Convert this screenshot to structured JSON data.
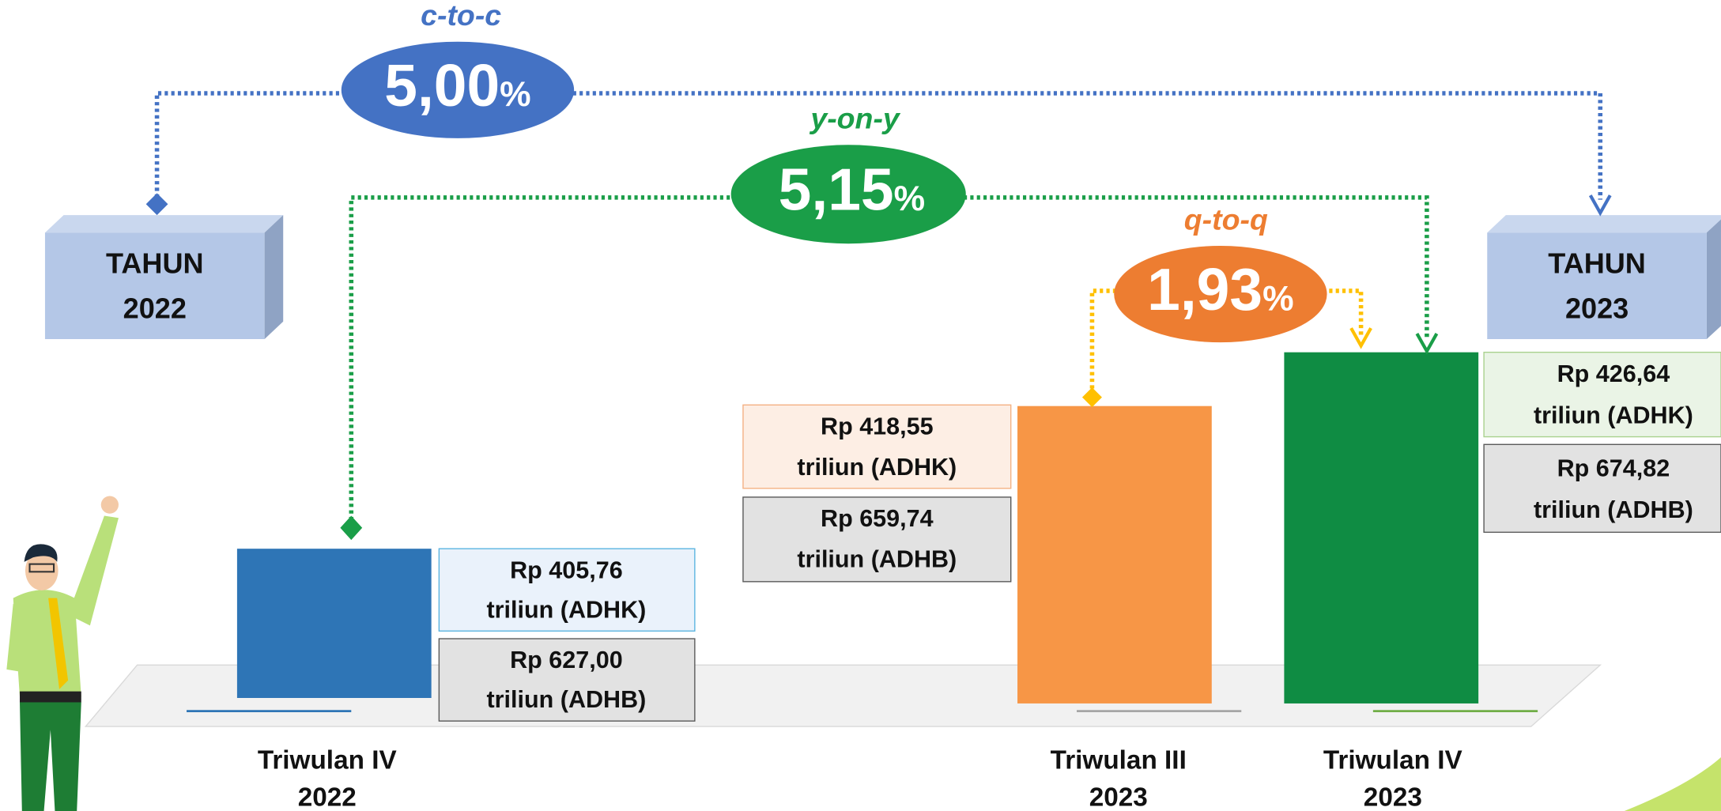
{
  "growth": [
    {
      "label": "c-to-c",
      "value": "5,00",
      "unit": "%"
    },
    {
      "label": "y-on-y",
      "value": "5,15",
      "unit": "%"
    },
    {
      "label": "q-to-q",
      "value": "1,93",
      "unit": "%"
    }
  ],
  "years": [
    [
      "TAHUN",
      "2022"
    ],
    [
      "TAHUN",
      "2023"
    ]
  ],
  "periods": [
    {
      "label": [
        "Triwulan IV",
        "2022"
      ],
      "adhk": [
        "Rp 405,76",
        "triliun (ADHK)"
      ],
      "adhb": [
        "Rp 627,00",
        "triliun (ADHB)"
      ]
    },
    {
      "label": [
        "Triwulan III",
        "2023"
      ],
      "adhk": [
        "Rp 418,55",
        "triliun (ADHK)"
      ],
      "adhb": [
        "Rp 659,74",
        "triliun (ADHB)"
      ]
    },
    {
      "label": [
        "Triwulan IV",
        "2023"
      ],
      "adhk": [
        "Rp 426,64",
        "triliun (ADHK)"
      ],
      "adhb": [
        "Rp 674,82",
        "triliun (ADHB)"
      ]
    }
  ]
}
